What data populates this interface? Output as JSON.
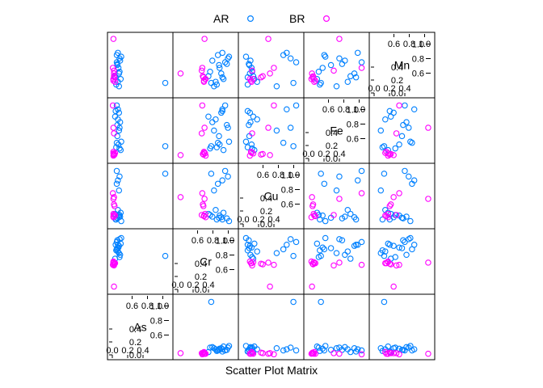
{
  "chart_data": {
    "type": "scatter",
    "xlabel": "Scatter Plot Matrix",
    "variables": [
      "As",
      "Cr",
      "Cu",
      "Fe",
      "Mn"
    ],
    "legend": {
      "placement": "top-center",
      "entries": [
        {
          "name": "AR",
          "color": "#0080ff"
        },
        {
          "name": "BR",
          "color": "#ff00ff"
        }
      ]
    },
    "diagonal_axis": {
      "range": [
        0,
        1
      ],
      "tick_labels_top": [
        "0.6",
        "0.8",
        "1.0"
      ],
      "tick_labels_bottom": [
        "0.0",
        "0.2",
        "0.4"
      ]
    },
    "series": [
      {
        "name": "AR",
        "As": [
          0.95,
          0.13,
          0.08,
          0.1,
          0.12,
          0.15,
          0.07,
          0.11,
          0.09,
          0.16,
          0.05,
          0.12,
          0.08,
          0.14,
          0.1,
          0.06,
          0.13,
          0.09
        ],
        "Cr": [
          0.6,
          0.9,
          0.85,
          0.8,
          0.78,
          0.82,
          0.7,
          0.75,
          0.88,
          0.92,
          0.55,
          0.65,
          0.72,
          0.62,
          0.68,
          0.8,
          0.58,
          0.74
        ],
        "Cu": [
          0.9,
          0.85,
          0.95,
          0.78,
          0.12,
          0.2,
          0.08,
          0.15,
          0.1,
          0.05,
          0.18,
          0.6,
          0.72,
          0.13,
          0.25,
          0.08,
          0.16,
          0.11
        ],
        "Fe": [
          0.22,
          0.55,
          0.95,
          0.88,
          0.82,
          0.15,
          0.2,
          0.25,
          0.6,
          0.3,
          0.75,
          0.5,
          0.28,
          0.65,
          0.7,
          0.85,
          0.18,
          0.4
        ],
        "Mn": [
          0.18,
          0.62,
          0.55,
          0.72,
          0.35,
          0.25,
          0.15,
          0.45,
          0.52,
          0.65,
          0.3,
          0.12,
          0.68,
          0.58,
          0.2,
          0.28,
          0.38,
          0.5
        ]
      },
      {
        "name": "BR",
        "As": [
          0.02,
          0.03,
          0.02,
          0.05,
          0.03,
          0.01,
          0.02,
          0.04,
          0.02,
          0.03
        ],
        "Cr": [
          0.48,
          0.45,
          0.5,
          0.47,
          0.05,
          0.44,
          0.49,
          0.46,
          0.47,
          0.43
        ],
        "Cu": [
          0.45,
          0.35,
          0.12,
          0.15,
          0.48,
          0.55,
          0.18,
          0.32,
          0.14,
          0.16
        ],
        "Fe": [
          0.55,
          0.08,
          0.05,
          0.1,
          0.06,
          0.95,
          0.09,
          0.07,
          0.12,
          0.45
        ],
        "Mn": [
          0.97,
          0.3,
          0.25,
          0.2,
          0.35,
          0.45,
          0.25,
          0.28,
          0.22,
          0.4
        ]
      }
    ]
  }
}
